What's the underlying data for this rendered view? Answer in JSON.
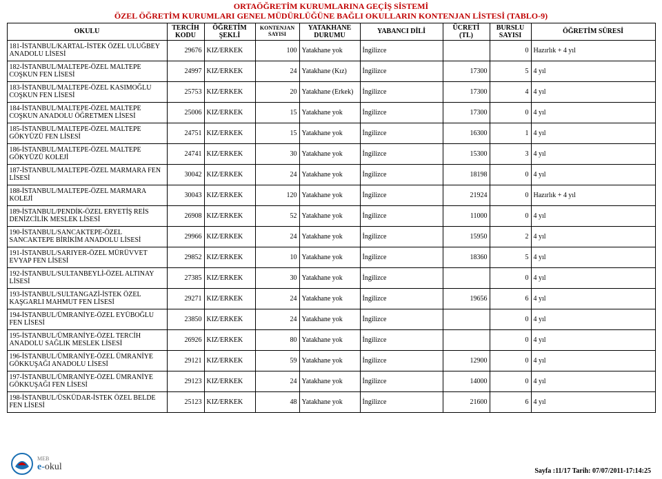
{
  "header": {
    "title1": "ORTAÖĞRETİM KURUMLARINA GEÇİŞ SİSTEMİ",
    "title2": "ÖZEL ÖĞRETİM KURUMLARI GENEL MÜDÜRLÜĞÜNE BAĞLI  OKULLARIN KONTENJAN LİSTESİ (TABLO-9)"
  },
  "columns": {
    "school": "OKULU",
    "code": "TERCİH KODU",
    "type": "ÖĞRETİM ŞEKLİ",
    "quota": "KONTENJAN SAYISI",
    "dorm": "YATAKHANE DURUMU",
    "lang": "YABANCI DİLİ",
    "fee": "ÜCRETİ (TL)",
    "schol": "BURSLU SAYISI",
    "dur": "ÖĞRETİM SÜRESİ"
  },
  "rows": [
    {
      "school": "181-İSTANBUL/KARTAL-İSTEK ÖZEL ULUĞBEY ANADOLU LİSESİ",
      "code": "29676",
      "type": "KIZ/ERKEK",
      "quota": "100",
      "dorm": "Yatakhane yok",
      "lang": "İngilizce",
      "fee": "",
      "schol": "0",
      "dur": "Hazırlık + 4 yıl"
    },
    {
      "school": "182-İSTANBUL/MALTEPE-ÖZEL  MALTEPE COŞKUN FEN LİSESİ",
      "code": "24997",
      "type": "KIZ/ERKEK",
      "quota": "24",
      "dorm": "Yatakhane (Kız)",
      "lang": "İngilizce",
      "fee": "17300",
      "schol": "5",
      "dur": "4 yıl"
    },
    {
      "school": "183-İSTANBUL/MALTEPE-ÖZEL KASIMOĞLU COŞKUN FEN LİSESİ",
      "code": "25753",
      "type": "KIZ/ERKEK",
      "quota": "20",
      "dorm": "Yatakhane (Erkek)",
      "lang": "İngilizce",
      "fee": "17300",
      "schol": "4",
      "dur": "4 yıl"
    },
    {
      "school": "184-İSTANBUL/MALTEPE-ÖZEL MALTEPE COŞKUN ANADOLU ÖĞRETMEN LİSESİ",
      "code": "25006",
      "type": "KIZ/ERKEK",
      "quota": "15",
      "dorm": "Yatakhane yok",
      "lang": "İngilizce",
      "fee": "17300",
      "schol": "0",
      "dur": "4 yıl"
    },
    {
      "school": "185-İSTANBUL/MALTEPE-ÖZEL MALTEPE GÖKYÜZÜ FEN LİSESİ",
      "code": "24751",
      "type": "KIZ/ERKEK",
      "quota": "15",
      "dorm": "Yatakhane yok",
      "lang": "İngilizce",
      "fee": "16300",
      "schol": "1",
      "dur": "4 yıl"
    },
    {
      "school": "186-İSTANBUL/MALTEPE-ÖZEL MALTEPE GÖKYÜZÜ KOLEJİ",
      "code": "24741",
      "type": "KIZ/ERKEK",
      "quota": "30",
      "dorm": "Yatakhane yok",
      "lang": "İngilizce",
      "fee": "15300",
      "schol": "3",
      "dur": "4 yıl"
    },
    {
      "school": "187-İSTANBUL/MALTEPE-ÖZEL MARMARA FEN LİSESİ",
      "code": "30042",
      "type": "KIZ/ERKEK",
      "quota": "24",
      "dorm": "Yatakhane yok",
      "lang": "İngilizce",
      "fee": "18198",
      "schol": "0",
      "dur": "4 yıl"
    },
    {
      "school": "188-İSTANBUL/MALTEPE-ÖZEL MARMARA KOLEJİ",
      "code": "30043",
      "type": "KIZ/ERKEK",
      "quota": "120",
      "dorm": "Yatakhane yok",
      "lang": "İngilizce",
      "fee": "21924",
      "schol": "0",
      "dur": "Hazırlık + 4 yıl"
    },
    {
      "school": "189-İSTANBUL/PENDİK-ÖZEL ERYETİŞ REİS DENİZCİLİK MESLEK LİSESİ",
      "code": "26908",
      "type": "KIZ/ERKEK",
      "quota": "52",
      "dorm": "Yatakhane yok",
      "lang": "İngilizce",
      "fee": "11000",
      "schol": "0",
      "dur": "4 yıl"
    },
    {
      "school": "190-İSTANBUL/SANCAKTEPE-ÖZEL SANCAKTEPE BİRİKİM ANADOLU LİSESİ",
      "code": "29966",
      "type": "KIZ/ERKEK",
      "quota": "24",
      "dorm": "Yatakhane yok",
      "lang": "İngilizce",
      "fee": "15950",
      "schol": "2",
      "dur": "4 yıl"
    },
    {
      "school": "191-İSTANBUL/SARIYER-ÖZEL MÜRÜVVET EVYAP FEN LİSESİ",
      "code": "29852",
      "type": "KIZ/ERKEK",
      "quota": "10",
      "dorm": "Yatakhane yok",
      "lang": "İngilizce",
      "fee": "18360",
      "schol": "5",
      "dur": "4 yıl"
    },
    {
      "school": "192-İSTANBUL/SULTANBEYLİ-ÖZEL ALTINAY LİSESİ",
      "code": "27385",
      "type": "KIZ/ERKEK",
      "quota": "30",
      "dorm": "Yatakhane yok",
      "lang": "İngilizce",
      "fee": "",
      "schol": "0",
      "dur": "4 yıl"
    },
    {
      "school": "193-İSTANBUL/SULTANGAZİ-İSTEK ÖZEL KAŞGARLI MAHMUT FEN LİSESİ",
      "code": "29271",
      "type": "KIZ/ERKEK",
      "quota": "24",
      "dorm": "Yatakhane yok",
      "lang": "İngilizce",
      "fee": "19656",
      "schol": "6",
      "dur": "4 yıl"
    },
    {
      "school": "194-İSTANBUL/ÜMRANİYE-ÖZEL EYÜBOĞLU FEN LİSESİ",
      "code": "23850",
      "type": "KIZ/ERKEK",
      "quota": "24",
      "dorm": "Yatakhane yok",
      "lang": "İngilizce",
      "fee": "",
      "schol": "0",
      "dur": "4 yıl"
    },
    {
      "school": "195-İSTANBUL/ÜMRANİYE-ÖZEL TERCİH ANADOLU SAĞLIK MESLEK LİSESİ",
      "code": "26926",
      "type": "KIZ/ERKEK",
      "quota": "80",
      "dorm": "Yatakhane yok",
      "lang": "İngilizce",
      "fee": "",
      "schol": "0",
      "dur": "4 yıl"
    },
    {
      "school": "196-İSTANBUL/ÜMRANİYE-ÖZEL ÜMRANİYE GÖKKUŞAĞI ANADOLU LİSESİ",
      "code": "29121",
      "type": "KIZ/ERKEK",
      "quota": "59",
      "dorm": "Yatakhane yok",
      "lang": "İngilizce",
      "fee": "12900",
      "schol": "0",
      "dur": "4 yıl"
    },
    {
      "school": "197-İSTANBUL/ÜMRANİYE-ÖZEL ÜMRANİYE GÖKKUŞAĞI FEN LİSESİ",
      "code": "29123",
      "type": "KIZ/ERKEK",
      "quota": "24",
      "dorm": "Yatakhane yok",
      "lang": "İngilizce",
      "fee": "14000",
      "schol": "0",
      "dur": "4 yıl"
    },
    {
      "school": "198-İSTANBUL/ÜSKÜDAR-İSTEK ÖZEL BELDE FEN LİSESİ",
      "code": "25123",
      "type": "KIZ/ERKEK",
      "quota": "48",
      "dorm": "Yatakhane yok",
      "lang": "İngilizce",
      "fee": "21600",
      "schol": "6",
      "dur": "4 yıl"
    }
  ],
  "footer": {
    "brand_meb": "MEB",
    "brand_e": "e-",
    "brand_okul": "okul",
    "page": "Sayfa :11/17 Tarih: 07/07/2011-17:14:25"
  },
  "style": {
    "title_color": "#c00000",
    "border_color": "#000000",
    "bg": "#ffffff",
    "font": "Times New Roman",
    "header_fontsize_pt": 12,
    "body_fontsize_pt": 10
  }
}
